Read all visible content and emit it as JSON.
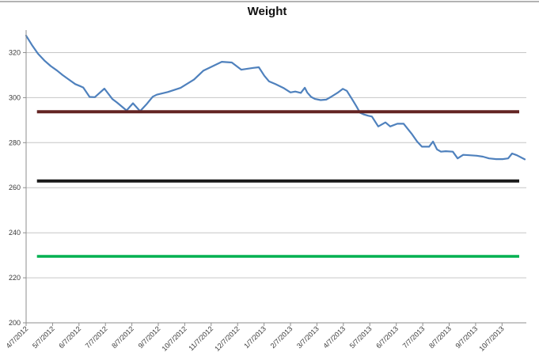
{
  "chart": {
    "title": "Weight"
  },
  "chart_data": {
    "type": "line",
    "title": "Weight",
    "xlabel": "",
    "ylabel": "",
    "x_unit": "month index (0 = 4/7/2012, 1 = 5/7/2012, ... 18 = 10/7/2013)",
    "x_tick_labels": [
      "4/7/2012",
      "5/7/2012",
      "6/7/2012",
      "7/7/2012",
      "8/7/2012",
      "9/7/2012",
      "10/7/2012",
      "11/7/2012",
      "12/7/2012",
      "1/7/2013",
      "2/7/2013",
      "3/7/2013",
      "4/7/2013",
      "5/7/2013",
      "6/7/2013",
      "7/7/2013",
      "8/7/2013",
      "9/7/2013",
      "10/7/2013"
    ],
    "xlim": [
      0,
      18.92
    ],
    "ylim": [
      200,
      330
    ],
    "y_ticks": [
      200,
      220,
      240,
      260,
      280,
      300,
      320
    ],
    "grid": "horizontal",
    "legend": "none",
    "series": [
      {
        "name": "Weight",
        "color": "#4f81bd",
        "stroke_width": 2.2,
        "points": [
          [
            0.0,
            327.5
          ],
          [
            0.24,
            323.0
          ],
          [
            0.45,
            319.5
          ],
          [
            0.69,
            316.5
          ],
          [
            0.93,
            314.0
          ],
          [
            1.17,
            312.0
          ],
          [
            1.38,
            310.0
          ],
          [
            1.62,
            308.0
          ],
          [
            1.86,
            306.0
          ],
          [
            2.07,
            305.0
          ],
          [
            2.16,
            304.5
          ],
          [
            2.4,
            300.3
          ],
          [
            2.6,
            300.2
          ],
          [
            2.96,
            304.0
          ],
          [
            3.26,
            299.4
          ],
          [
            3.44,
            297.8
          ],
          [
            3.8,
            294.3
          ],
          [
            4.04,
            297.5
          ],
          [
            4.31,
            294.0
          ],
          [
            4.55,
            297.0
          ],
          [
            4.79,
            300.4
          ],
          [
            4.94,
            301.3
          ],
          [
            5.36,
            302.5
          ],
          [
            5.84,
            304.3
          ],
          [
            6.35,
            308.0
          ],
          [
            6.71,
            312.0
          ],
          [
            7.4,
            315.9
          ],
          [
            7.78,
            315.6
          ],
          [
            8.14,
            312.4
          ],
          [
            8.59,
            313.2
          ],
          [
            8.8,
            313.5
          ],
          [
            9.01,
            309.7
          ],
          [
            9.19,
            307.2
          ],
          [
            9.43,
            306.0
          ],
          [
            9.73,
            304.3
          ],
          [
            10.0,
            302.3
          ],
          [
            10.18,
            302.7
          ],
          [
            10.39,
            302.1
          ],
          [
            10.54,
            304.4
          ],
          [
            10.63,
            302.3
          ],
          [
            10.78,
            300.3
          ],
          [
            10.93,
            299.4
          ],
          [
            11.14,
            298.9
          ],
          [
            11.35,
            299.1
          ],
          [
            11.53,
            300.3
          ],
          [
            11.8,
            302.3
          ],
          [
            11.98,
            303.9
          ],
          [
            12.13,
            303.0
          ],
          [
            12.34,
            299.1
          ],
          [
            12.49,
            296.2
          ],
          [
            12.63,
            293.3
          ],
          [
            12.78,
            292.5
          ],
          [
            12.93,
            292.0
          ],
          [
            13.08,
            291.6
          ],
          [
            13.32,
            287.2
          ],
          [
            13.59,
            289.0
          ],
          [
            13.77,
            287.2
          ],
          [
            14.04,
            288.4
          ],
          [
            14.28,
            288.4
          ],
          [
            14.58,
            284.0
          ],
          [
            14.79,
            280.5
          ],
          [
            14.97,
            278.2
          ],
          [
            15.24,
            278.2
          ],
          [
            15.39,
            280.5
          ],
          [
            15.54,
            277.0
          ],
          [
            15.69,
            276.0
          ],
          [
            15.87,
            276.2
          ],
          [
            16.14,
            276.0
          ],
          [
            16.32,
            273.0
          ],
          [
            16.53,
            274.6
          ],
          [
            16.77,
            274.4
          ],
          [
            17.04,
            274.2
          ],
          [
            17.28,
            273.8
          ],
          [
            17.51,
            273.0
          ],
          [
            17.78,
            272.7
          ],
          [
            18.02,
            272.7
          ],
          [
            18.23,
            273.0
          ],
          [
            18.38,
            275.2
          ],
          [
            18.56,
            274.4
          ],
          [
            18.86,
            272.6
          ]
        ]
      }
    ],
    "reference_lines": [
      {
        "id": "dark-red",
        "value": 293.7,
        "color": "#632423",
        "stroke_width": 4,
        "x_start": 0.41,
        "x_end": 18.65
      },
      {
        "id": "black",
        "value": 263.0,
        "color": "#1a1a1a",
        "stroke_width": 4,
        "x_start": 0.41,
        "x_end": 18.65
      },
      {
        "id": "green",
        "value": 229.5,
        "color": "#00b050",
        "stroke_width": 3.5,
        "x_start": 0.41,
        "x_end": 18.65
      }
    ],
    "colors": {
      "gridline": "#c6c6c6",
      "axis": "#8e8e8e",
      "tick_label": "#3a3a3a",
      "title": "#111111"
    }
  }
}
